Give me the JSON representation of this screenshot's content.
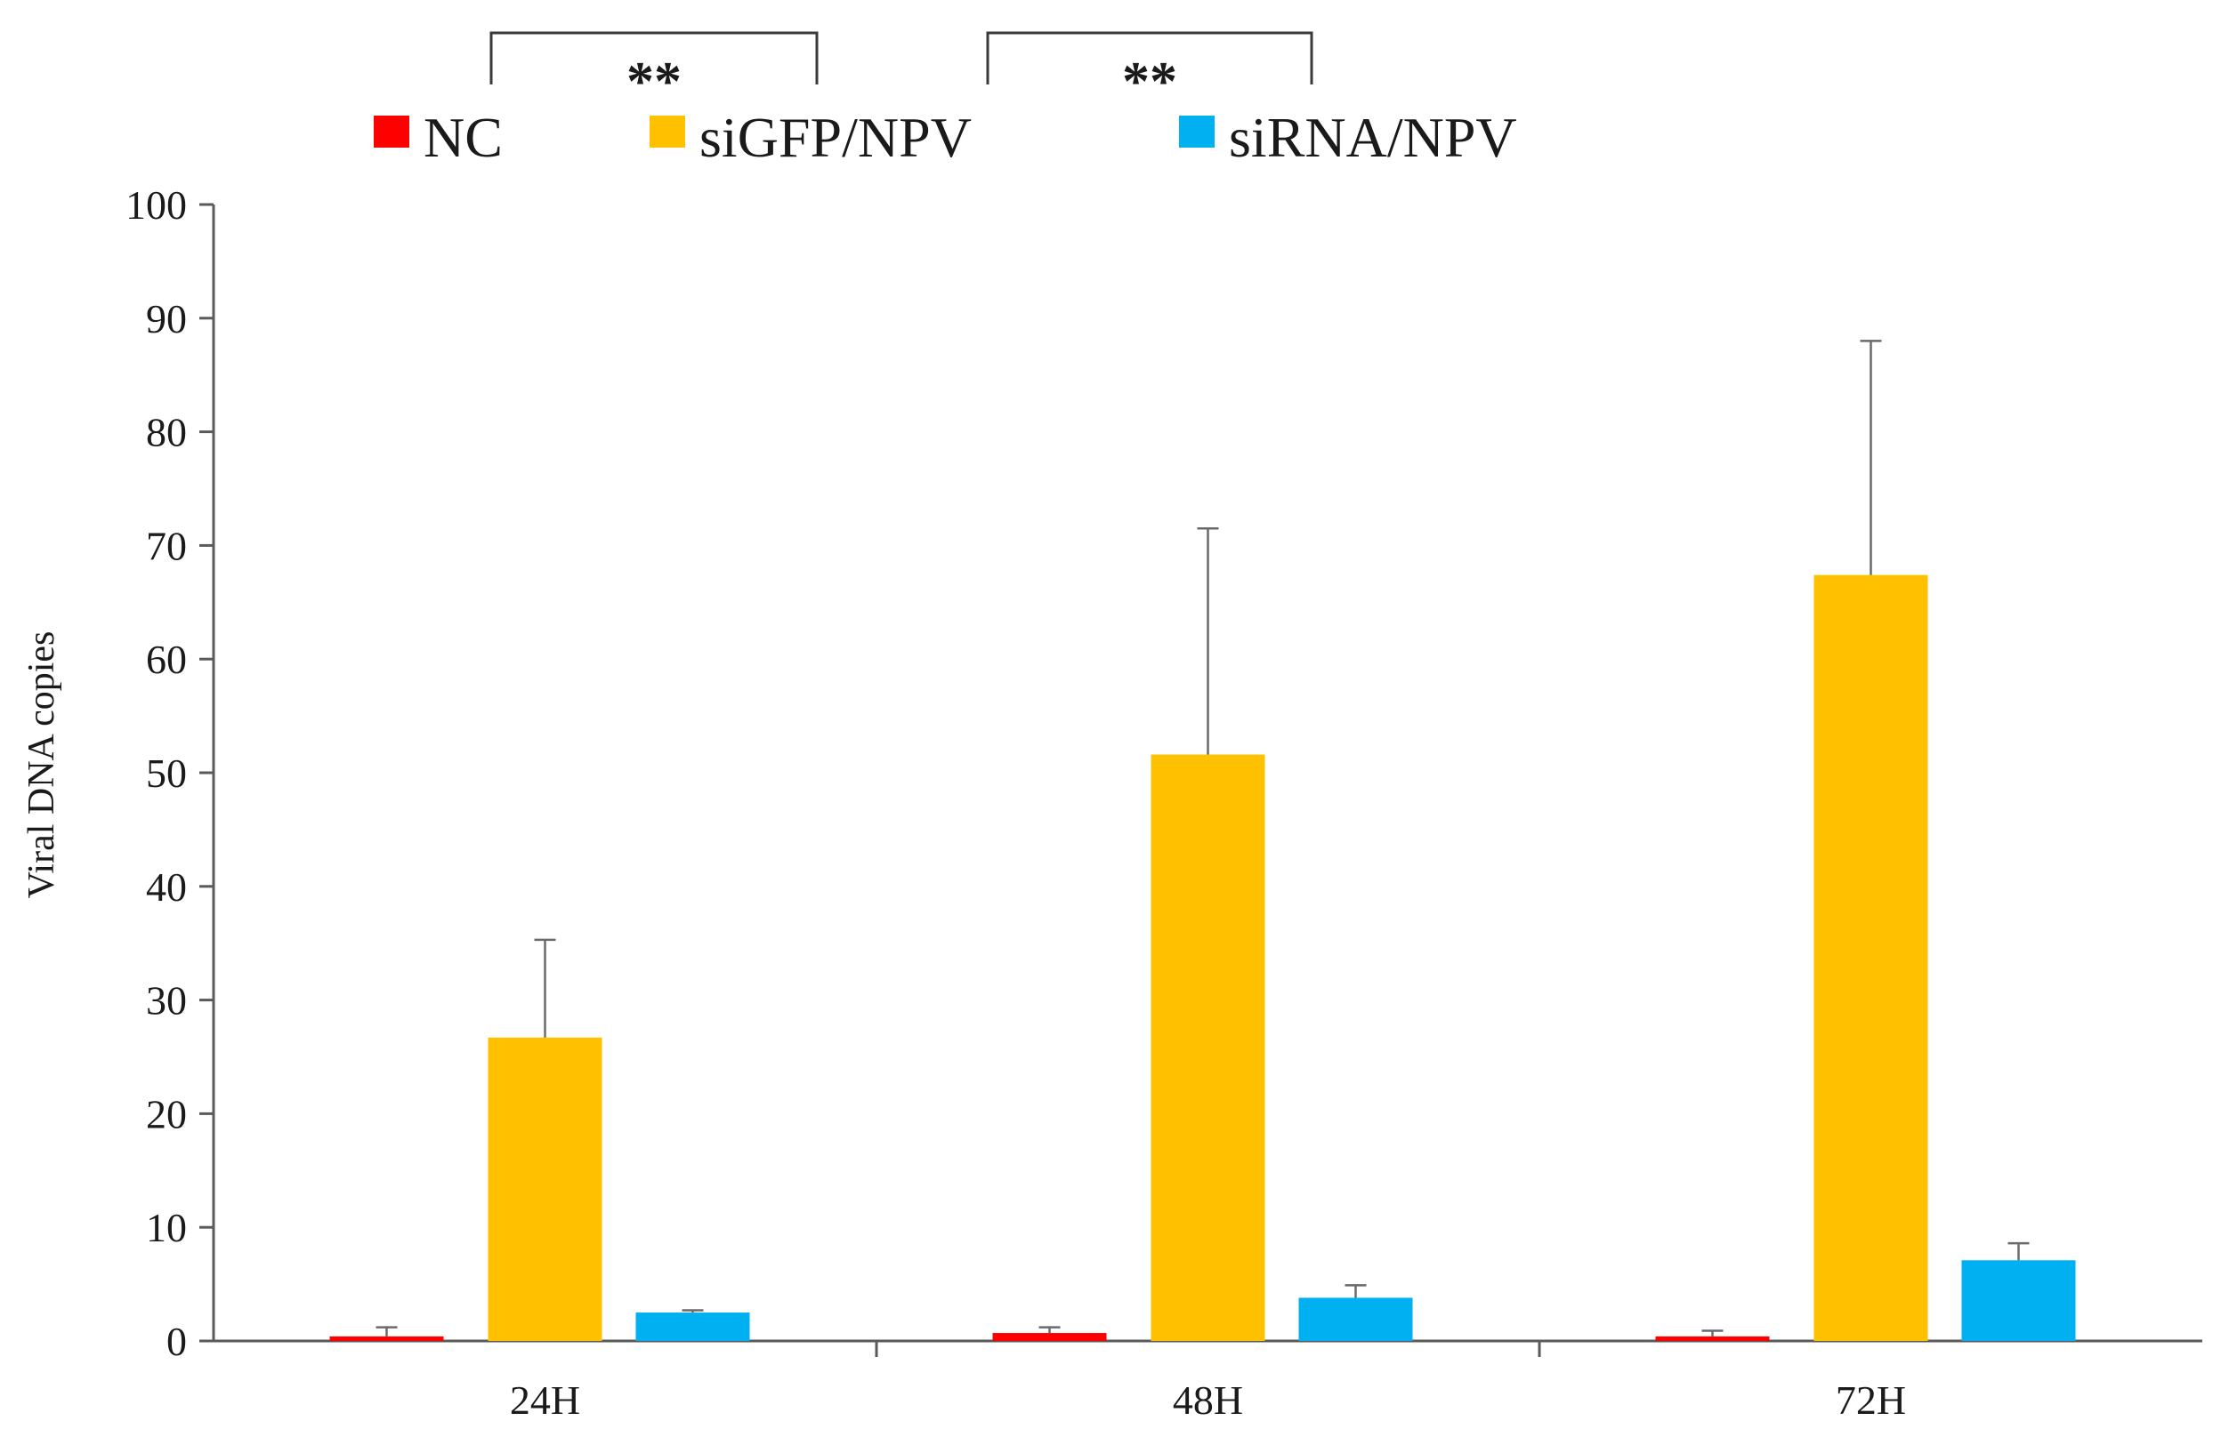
{
  "chart_data": {
    "type": "bar",
    "title": "",
    "xlabel": "",
    "ylabel": "Viral DNA copies",
    "categories": [
      "24H",
      "48H",
      "72H"
    ],
    "ylim": [
      0,
      100
    ],
    "yticks": [
      0,
      10,
      20,
      30,
      40,
      50,
      60,
      70,
      80,
      90,
      100
    ],
    "legend_position": "top",
    "grid": false,
    "series": [
      {
        "name": "NC",
        "color": "#ff0000",
        "values": [
          0.4,
          0.7,
          0.4
        ],
        "errors": [
          0.8,
          0.5,
          0.5
        ]
      },
      {
        "name": "siGFP/NPV",
        "color": "#ffc000",
        "values": [
          26.7,
          51.6,
          67.4
        ],
        "errors": [
          8.6,
          19.9,
          20.6
        ]
      },
      {
        "name": "siRNA/NPV",
        "color": "#00b0f0",
        "values": [
          2.5,
          3.8,
          7.1
        ],
        "errors": [
          0.2,
          1.1,
          1.5
        ]
      }
    ],
    "annotations": [
      {
        "text": "**",
        "from_series": "NC",
        "to_series": "siGFP/NPV"
      },
      {
        "text": "**",
        "from_series": "siGFP/NPV",
        "to_series": "siRNA/NPV"
      }
    ]
  }
}
